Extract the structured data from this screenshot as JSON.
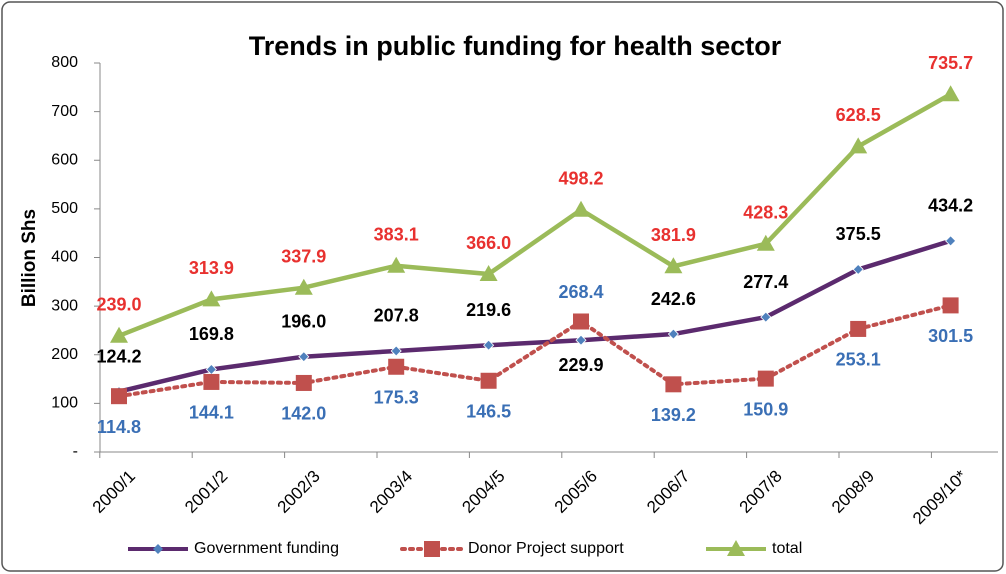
{
  "chart_data": {
    "type": "line",
    "title": "Trends in public funding for health sector",
    "y_label": "Billion Shs",
    "categories": [
      "2000/1",
      "2001/2",
      "2002/3",
      "2003/4",
      "2004/5",
      "2005/6",
      "2006/7",
      "2007/8",
      "2008/9",
      "2009/10*"
    ],
    "series": [
      {
        "name": "Government funding",
        "color": "#5b2a6e",
        "marker": "diamond",
        "marker_color": "#4f81bd",
        "label_color": "#000000",
        "dash": "solid",
        "values": [
          124.2,
          169.8,
          196.0,
          207.8,
          219.6,
          229.9,
          242.6,
          277.4,
          375.5,
          434.2
        ],
        "value_labels": [
          "124.2",
          "169.8",
          "196.0",
          "207.8",
          "219.6",
          "229.9",
          "242.6",
          "277.4",
          "375.5",
          "434.2"
        ]
      },
      {
        "name": "Donor Project support",
        "color": "#c0504d",
        "marker": "square",
        "marker_color": "#c0504d",
        "label_color": "#3a6fb5",
        "dash": "dotted",
        "values": [
          114.8,
          144.1,
          142.0,
          175.3,
          146.5,
          268.4,
          139.2,
          150.9,
          253.1,
          301.5
        ],
        "value_labels": [
          "114.8",
          "144.1",
          "142.0",
          "175.3",
          "146.5",
          "268.4",
          "139.2",
          "150.9",
          "253.1",
          "301.5"
        ]
      },
      {
        "name": "total",
        "color": "#9bbb59",
        "marker": "triangle",
        "marker_color": "#9bbb59",
        "label_color": "#e8312f",
        "dash": "solid",
        "values": [
          239.0,
          313.9,
          337.9,
          383.1,
          366.0,
          498.2,
          381.9,
          428.3,
          628.5,
          735.7
        ],
        "value_labels": [
          "239.0",
          "313.9",
          "337.9",
          "383.1",
          "366.0",
          "498.2",
          "381.9",
          "428.3",
          "628.5",
          "735.7"
        ]
      }
    ],
    "ylim": [
      0,
      800
    ],
    "yticks": [
      {
        "value": 0,
        "label": "-"
      },
      100,
      200,
      300,
      400,
      500,
      600,
      700,
      800
    ],
    "grid": false,
    "legend": "bottom"
  }
}
